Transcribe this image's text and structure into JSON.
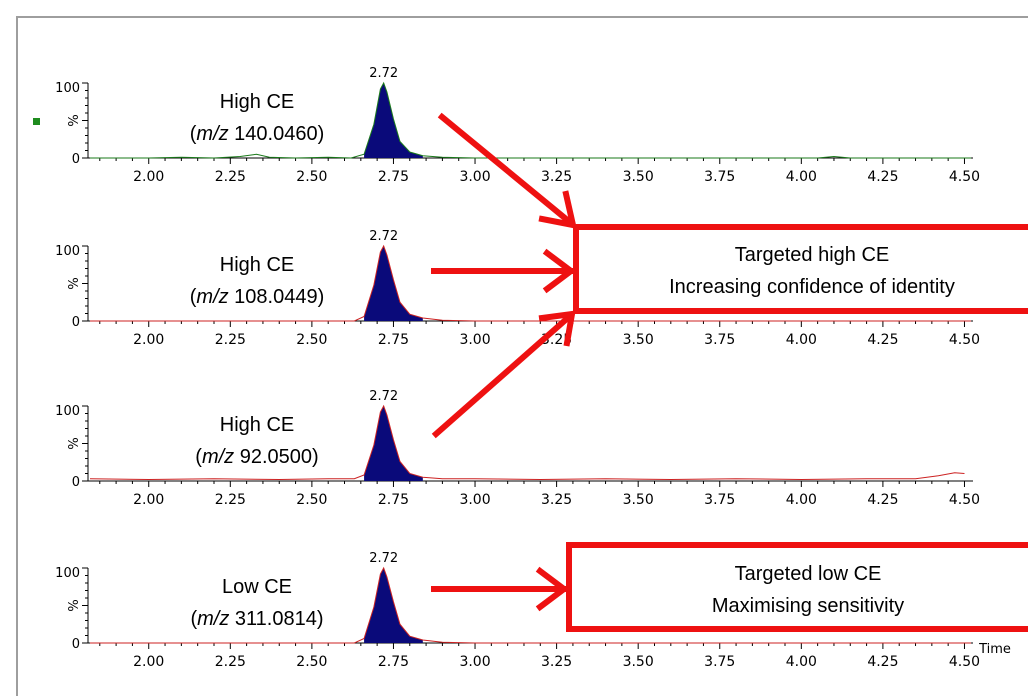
{
  "colors": {
    "peak_fill": "#0a0a7a",
    "peak_line_green": "#1a7a1a",
    "baseline_red": "#cc2222",
    "baseline_green": "#1a7a1a",
    "annotation": "#ee1111",
    "frame": "#9e9e9e",
    "marker": "#1e8c1e"
  },
  "x_axis_unit": "Time",
  "chart_data": [
    {
      "type": "line",
      "label_line1": "High CE",
      "label_mz_prefix": "m/z",
      "label_mz_value": "140.0460",
      "y_axis_label": "%",
      "y_ticks": [
        "0",
        "100"
      ],
      "ylim": [
        0,
        100
      ],
      "xlim": [
        1.82,
        4.52
      ],
      "x_ticks": [
        "2.00",
        "2.25",
        "2.50",
        "2.75",
        "3.00",
        "3.25",
        "3.50",
        "3.75",
        "4.00",
        "4.25",
        "4.50"
      ],
      "peak_label": "2.72",
      "peak_rt": 2.72,
      "trace_color": "green",
      "series": [
        {
          "x": [
            1.82,
            2.0,
            2.1,
            2.2,
            2.28,
            2.33,
            2.37,
            2.45,
            2.55,
            2.62,
            2.66,
            2.69,
            2.71,
            2.72,
            2.73,
            2.75,
            2.77,
            2.8,
            2.84,
            2.9,
            3.0,
            3.2,
            3.5,
            3.8,
            4.05,
            4.1,
            4.15,
            4.3,
            4.52
          ],
          "y": [
            0,
            0,
            1,
            0,
            2,
            5,
            1,
            0,
            1,
            0,
            5,
            45,
            92,
            100,
            88,
            52,
            22,
            8,
            3,
            1,
            0,
            0,
            0,
            0,
            0,
            2,
            0,
            0,
            0
          ]
        }
      ]
    },
    {
      "type": "line",
      "label_line1": "High CE",
      "label_mz_prefix": "m/z",
      "label_mz_value": "108.0449",
      "y_axis_label": "%",
      "y_ticks": [
        "0",
        "100"
      ],
      "ylim": [
        0,
        100
      ],
      "xlim": [
        1.82,
        4.52
      ],
      "x_ticks": [
        "2.00",
        "2.25",
        "2.50",
        "2.75",
        "3.00",
        "3.25",
        "3.50",
        "3.75",
        "4.00",
        "4.25",
        "4.50"
      ],
      "peak_label": "2.72",
      "peak_rt": 2.72,
      "trace_color": "red",
      "series": [
        {
          "x": [
            1.82,
            2.2,
            2.5,
            2.63,
            2.66,
            2.69,
            2.71,
            2.72,
            2.73,
            2.75,
            2.77,
            2.8,
            2.84,
            2.9,
            3.0,
            3.3,
            3.7,
            4.1,
            4.52
          ],
          "y": [
            0,
            0,
            0,
            0,
            6,
            48,
            92,
            100,
            88,
            55,
            25,
            9,
            4,
            1,
            0,
            0,
            0,
            0,
            0
          ]
        }
      ]
    },
    {
      "type": "line",
      "label_line1": "High CE",
      "label_mz_prefix": "m/z",
      "label_mz_value": "92.0500",
      "y_axis_label": "%",
      "y_ticks": [
        "0",
        "100"
      ],
      "ylim": [
        0,
        100
      ],
      "xlim": [
        1.82,
        4.52
      ],
      "x_ticks": [
        "2.00",
        "2.25",
        "2.50",
        "2.75",
        "3.00",
        "3.25",
        "3.50",
        "3.75",
        "4.00",
        "4.25",
        "4.50"
      ],
      "peak_label": "2.72",
      "peak_rt": 2.72,
      "trace_color": "red",
      "series": [
        {
          "x": [
            1.82,
            2.0,
            2.2,
            2.4,
            2.55,
            2.63,
            2.66,
            2.69,
            2.71,
            2.72,
            2.73,
            2.75,
            2.77,
            2.8,
            2.84,
            2.9,
            3.0,
            3.2,
            3.4,
            3.6,
            3.8,
            4.0,
            4.2,
            4.35,
            4.42,
            4.47,
            4.5
          ],
          "y": [
            3,
            2,
            3,
            2,
            3,
            3,
            8,
            48,
            92,
            100,
            88,
            55,
            26,
            10,
            5,
            3,
            3,
            2,
            3,
            2,
            3,
            2,
            3,
            3,
            7,
            11,
            10
          ]
        }
      ]
    },
    {
      "type": "line",
      "label_line1": "Low CE",
      "label_mz_prefix": "m/z",
      "label_mz_value": "311.0814",
      "y_axis_label": "%",
      "y_ticks": [
        "0",
        "100"
      ],
      "ylim": [
        0,
        100
      ],
      "xlim": [
        1.82,
        4.52
      ],
      "x_ticks": [
        "2.00",
        "2.25",
        "2.50",
        "2.75",
        "3.00",
        "3.25",
        "3.50",
        "3.75",
        "4.00",
        "4.25",
        "4.50"
      ],
      "peak_label": "2.72",
      "peak_rt": 2.72,
      "trace_color": "red",
      "series": [
        {
          "x": [
            1.82,
            2.2,
            2.5,
            2.63,
            2.66,
            2.69,
            2.71,
            2.72,
            2.73,
            2.75,
            2.77,
            2.8,
            2.84,
            2.9,
            3.0,
            3.3,
            3.7,
            4.1,
            4.52
          ],
          "y": [
            0,
            0,
            0,
            0,
            6,
            48,
            92,
            100,
            88,
            55,
            25,
            9,
            4,
            1,
            0,
            0,
            0,
            0,
            0
          ]
        }
      ]
    }
  ],
  "annotations": {
    "high_ce_box": {
      "line1": "Targeted high CE",
      "line2": "Increasing confidence of identity"
    },
    "low_ce_box": {
      "line1": "Targeted low CE",
      "line2": "Maximising sensitivity"
    }
  }
}
